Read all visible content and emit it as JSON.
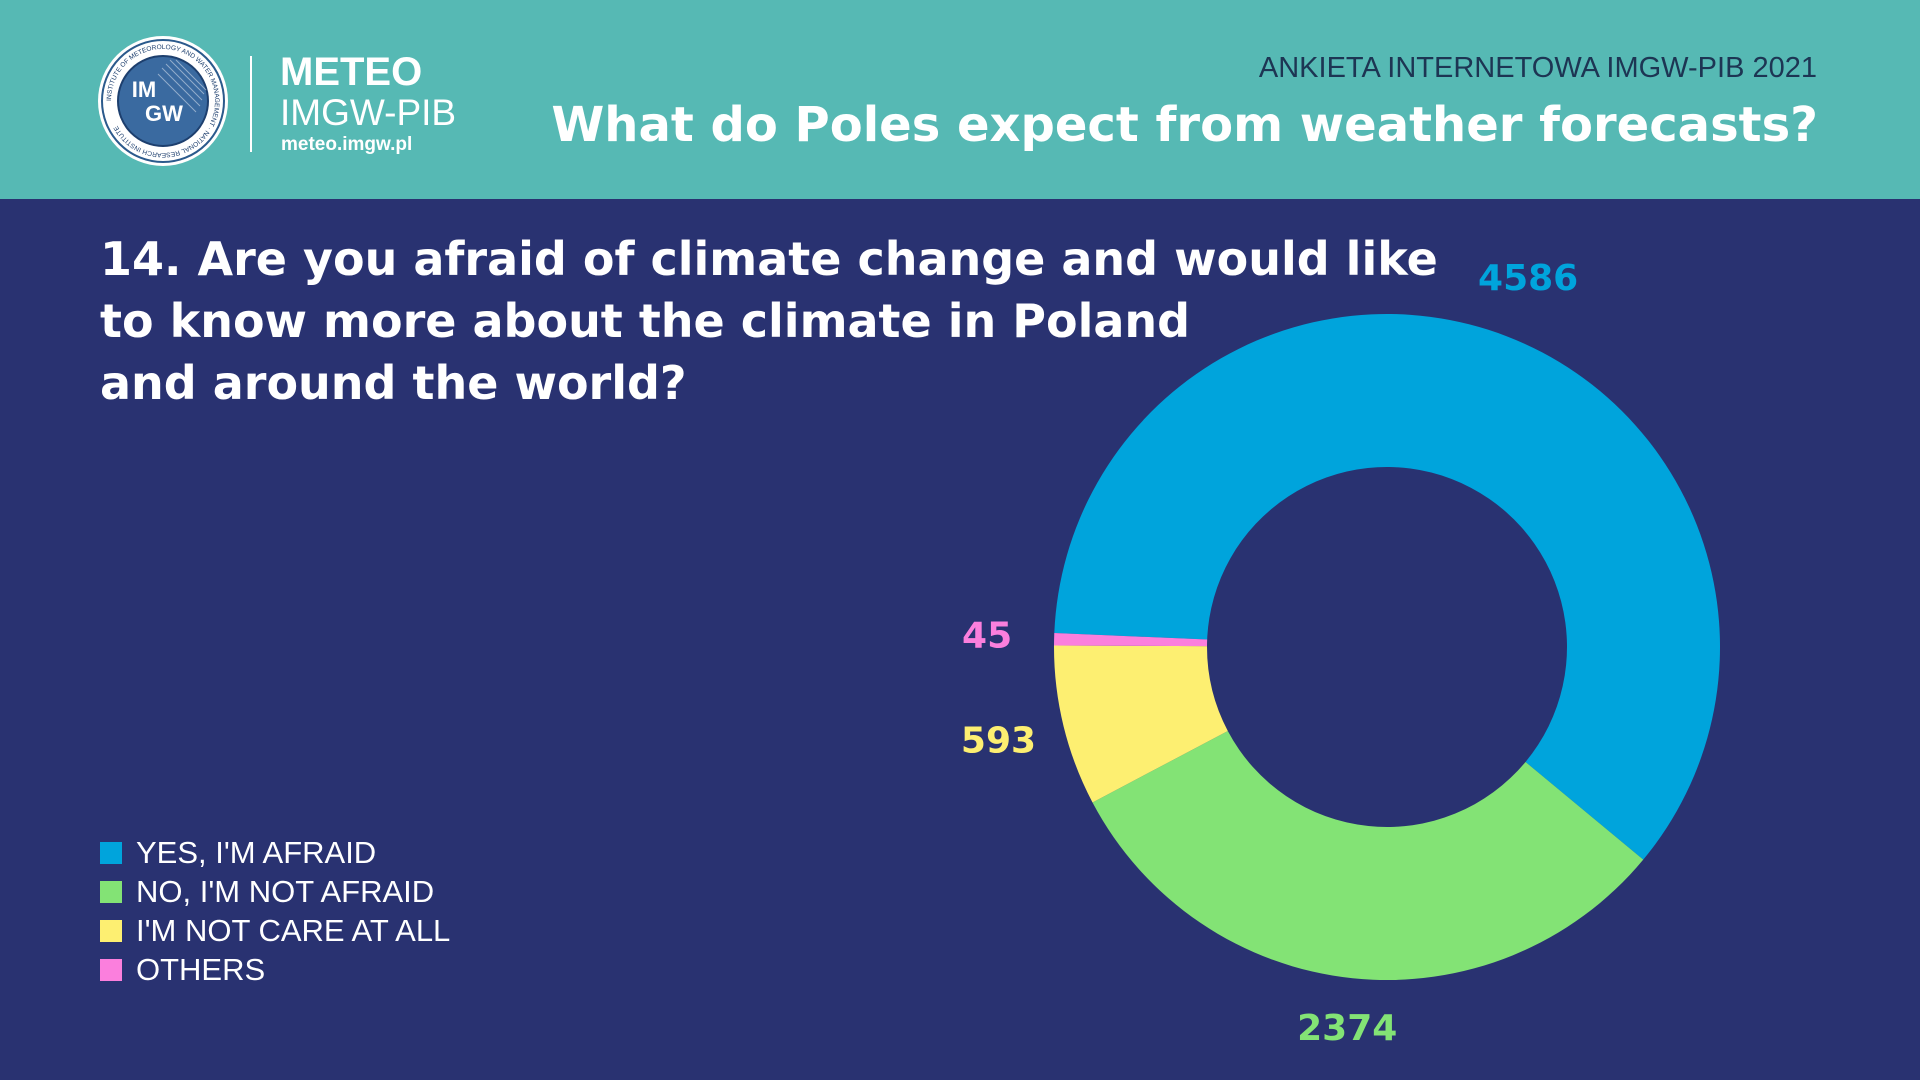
{
  "header": {
    "logo_seal_text": {
      "top_line": "IM",
      "bottom_line": "GW",
      "ring_text": "INSTITUTE OF METEOROLOGY AND WATER MANAGEMENT · NATIONAL RESEARCH INSTITUTE"
    },
    "brand_title": "METEO",
    "brand_subtitle": "IMGW-PIB",
    "brand_url": "meteo.imgw.pl",
    "survey_name": "ANKIETA INTERNETOWA IMGW-PIB 2021",
    "title": "What do Poles expect from weather forecasts?"
  },
  "question_lines": [
    "14. Are you afraid of climate change and would like",
    "to know more about the climate in Poland",
    "and around the world?"
  ],
  "colors": {
    "header_bg": "#56b9b4",
    "page_bg": "#293271"
  },
  "chart_data": {
    "type": "pie",
    "donut": true,
    "categories": [
      "YES, I'M AFRAID",
      "NO, I'M NOT AFRAID",
      "I'M NOT CARE AT ALL",
      "OTHERS"
    ],
    "values": [
      4586,
      2374,
      593,
      45
    ],
    "colors": [
      "#00a4dc",
      "#83e375",
      "#fdef71",
      "#fb7fdd"
    ],
    "data_labels": [
      "4586",
      "2374",
      "593",
      "45"
    ],
    "legend_position": "bottom-left"
  }
}
